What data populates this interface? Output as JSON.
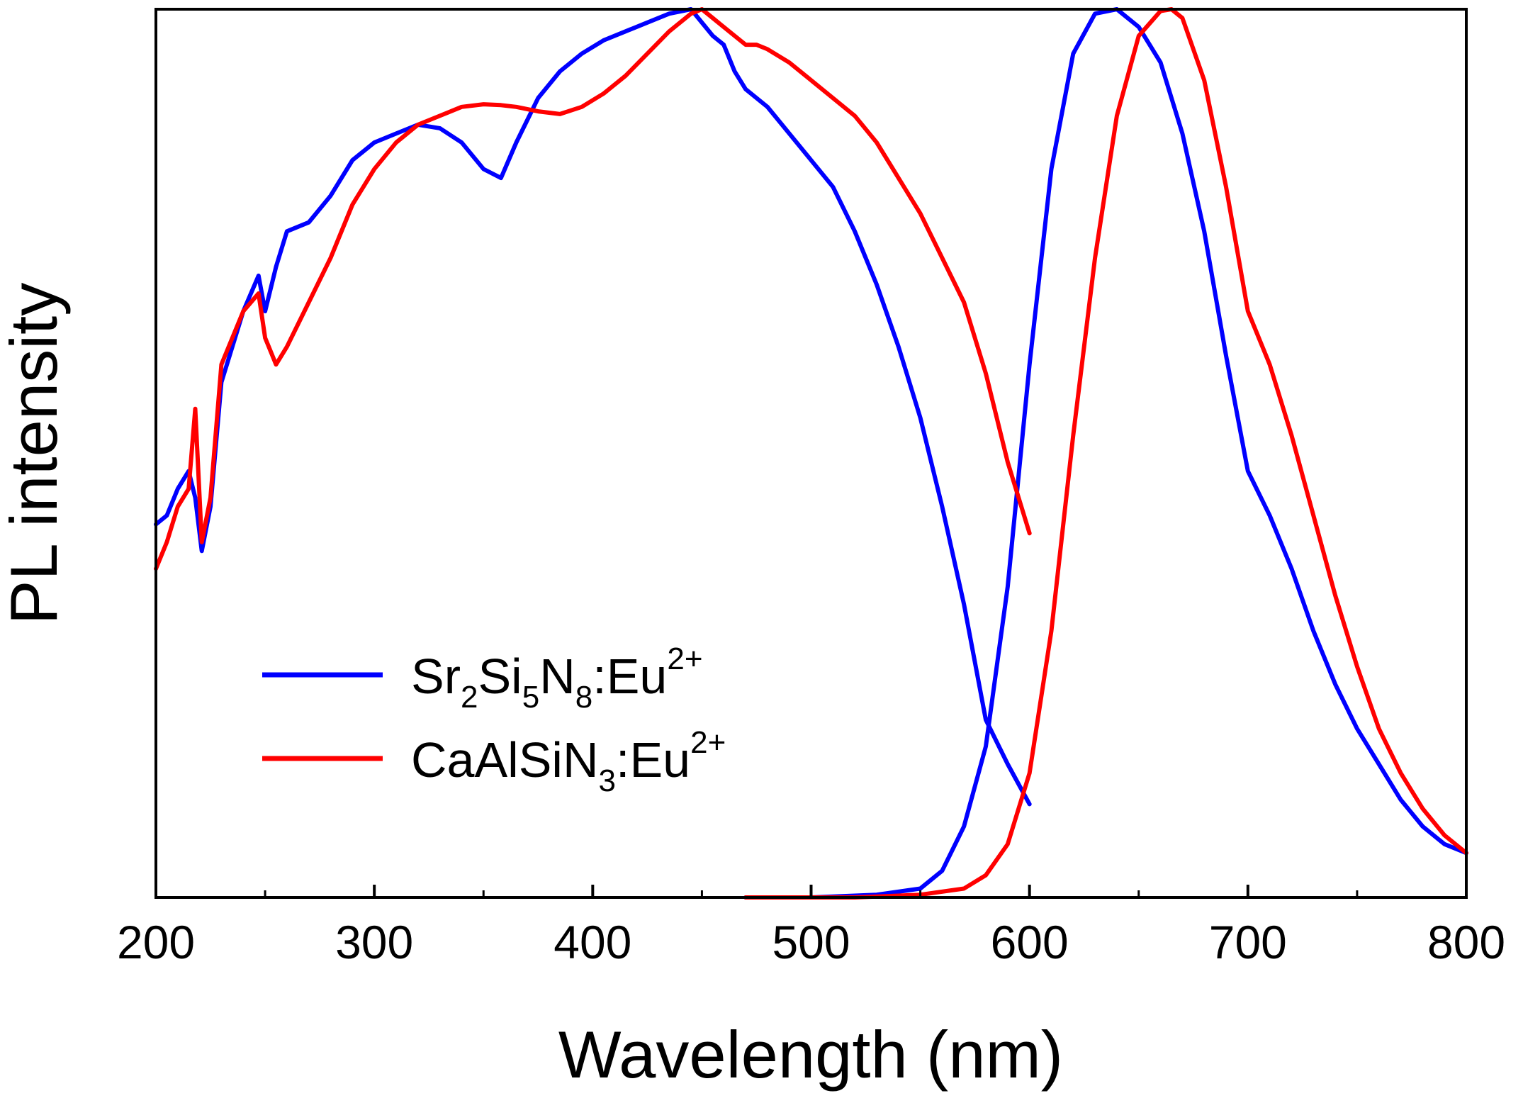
{
  "chart_data": {
    "type": "line",
    "title": "",
    "xlabel": "Wavelength (nm)",
    "ylabel": "PL intensity",
    "xlim": [
      200,
      800
    ],
    "ylim": [
      0,
      1.0
    ],
    "x_ticks": [
      "200",
      "300",
      "400",
      "500",
      "600",
      "700",
      "800"
    ],
    "y_ticks_labeled": false,
    "grid": false,
    "legend_position": "bottom-left",
    "series": [
      {
        "name": "Sr2Si5N8:Eu2+ excitation",
        "legend": "Sr₂Si₅N₈:Eu²⁺",
        "color": "#0000ff",
        "x": [
          200,
          205,
          210,
          215,
          218,
          221,
          225,
          230,
          240,
          247,
          250,
          255,
          260,
          270,
          280,
          290,
          300,
          310,
          320,
          330,
          340,
          350,
          358,
          365,
          375,
          385,
          395,
          405,
          415,
          425,
          435,
          445,
          450,
          455,
          460,
          465,
          470,
          475,
          480,
          490,
          500,
          510,
          520,
          530,
          540,
          550,
          560,
          570,
          580,
          590,
          600
        ],
        "y": [
          0.42,
          0.43,
          0.46,
          0.48,
          0.45,
          0.39,
          0.44,
          0.58,
          0.66,
          0.7,
          0.66,
          0.71,
          0.75,
          0.76,
          0.79,
          0.83,
          0.85,
          0.86,
          0.87,
          0.866,
          0.85,
          0.82,
          0.81,
          0.85,
          0.9,
          0.93,
          0.95,
          0.965,
          0.975,
          0.985,
          0.995,
          1.0,
          0.985,
          0.97,
          0.96,
          0.93,
          0.91,
          0.9,
          0.89,
          0.86,
          0.83,
          0.8,
          0.75,
          0.69,
          0.62,
          0.54,
          0.44,
          0.33,
          0.2,
          0.15,
          0.105
        ]
      },
      {
        "name": "Sr2Si5N8:Eu2+ emission",
        "legend": "",
        "color": "#0000ff",
        "x": [
          470,
          500,
          530,
          550,
          560,
          570,
          580,
          590,
          600,
          610,
          620,
          630,
          640,
          650,
          660,
          670,
          680,
          690,
          700,
          710,
          720,
          730,
          740,
          750,
          760,
          770,
          780,
          790,
          800
        ],
        "y": [
          0.0,
          0.0,
          0.003,
          0.01,
          0.03,
          0.08,
          0.17,
          0.35,
          0.6,
          0.82,
          0.95,
          0.995,
          1.0,
          0.98,
          0.94,
          0.86,
          0.75,
          0.61,
          0.48,
          0.43,
          0.37,
          0.3,
          0.24,
          0.19,
          0.15,
          0.11,
          0.08,
          0.06,
          0.05
        ]
      },
      {
        "name": "CaAlSiN3:Eu2+ excitation",
        "legend": "CaAlSiN₃:Eu²⁺",
        "color": "#ff0000",
        "x": [
          200,
          205,
          210,
          215,
          218,
          221,
          225,
          230,
          240,
          247,
          250,
          255,
          260,
          270,
          280,
          290,
          300,
          310,
          320,
          330,
          340,
          350,
          358,
          365,
          375,
          385,
          395,
          405,
          415,
          425,
          435,
          445,
          450,
          455,
          460,
          465,
          470,
          475,
          480,
          490,
          500,
          510,
          520,
          530,
          540,
          550,
          560,
          570,
          580,
          590,
          600
        ],
        "y": [
          0.37,
          0.4,
          0.44,
          0.46,
          0.55,
          0.4,
          0.45,
          0.6,
          0.66,
          0.68,
          0.63,
          0.6,
          0.62,
          0.67,
          0.72,
          0.78,
          0.82,
          0.85,
          0.87,
          0.88,
          0.89,
          0.893,
          0.892,
          0.89,
          0.885,
          0.882,
          0.89,
          0.905,
          0.925,
          0.95,
          0.975,
          0.995,
          1.0,
          0.99,
          0.98,
          0.97,
          0.96,
          0.96,
          0.955,
          0.94,
          0.92,
          0.9,
          0.88,
          0.85,
          0.81,
          0.77,
          0.72,
          0.67,
          0.59,
          0.49,
          0.41
        ]
      },
      {
        "name": "CaAlSiN3:Eu2+ emission",
        "legend": "",
        "color": "#ff0000",
        "x": [
          470,
          520,
          550,
          570,
          580,
          590,
          600,
          610,
          620,
          630,
          640,
          650,
          660,
          665,
          670,
          680,
          690,
          700,
          710,
          720,
          730,
          740,
          750,
          760,
          770,
          780,
          790,
          800
        ],
        "y": [
          0.0,
          0.0,
          0.003,
          0.01,
          0.025,
          0.06,
          0.14,
          0.3,
          0.52,
          0.72,
          0.88,
          0.97,
          0.998,
          1.0,
          0.99,
          0.92,
          0.8,
          0.66,
          0.6,
          0.52,
          0.43,
          0.34,
          0.26,
          0.19,
          0.14,
          0.1,
          0.07,
          0.05
        ]
      }
    ]
  }
}
